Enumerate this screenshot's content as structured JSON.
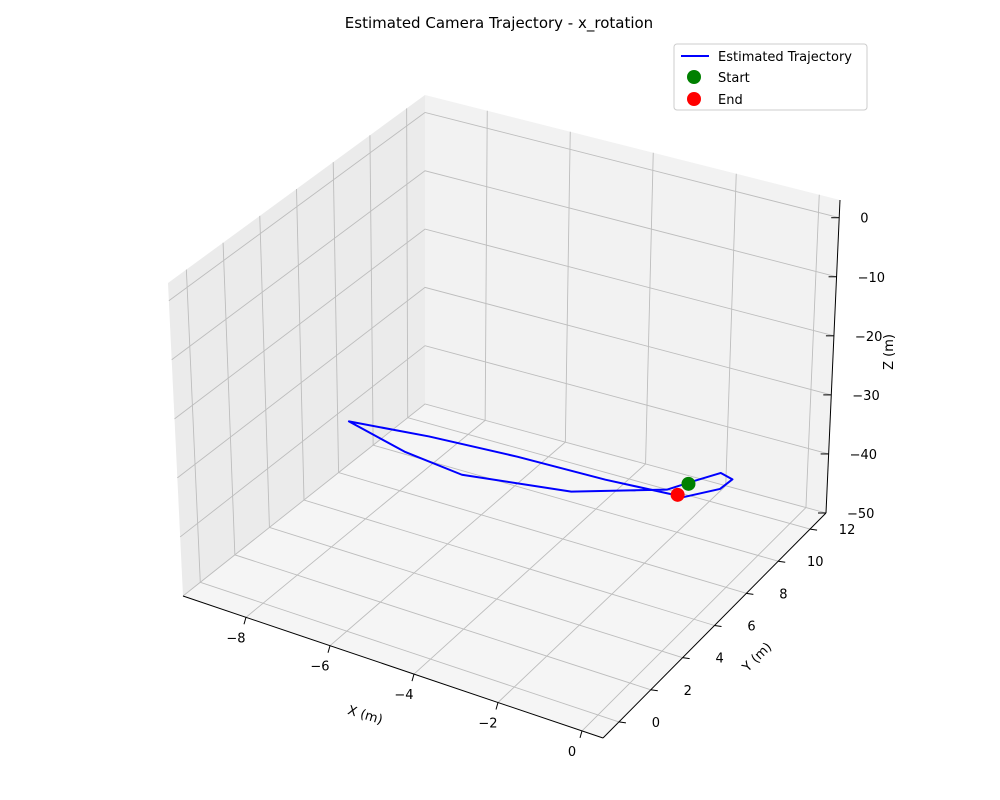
{
  "chart_data": {
    "type": "line",
    "projection": "3d",
    "title": "Estimated Camera Trajectory - x_rotation",
    "xlabel": "X (m)",
    "ylabel": "Y (m)",
    "zlabel": "Z (m)",
    "xlim": [
      -9.5,
      0.5
    ],
    "ylim": [
      -1,
      13
    ],
    "zlim": [
      -50,
      3
    ],
    "xticks": [
      -8,
      -6,
      -4,
      -2,
      0
    ],
    "yticks": [
      0,
      2,
      4,
      6,
      8,
      10,
      12
    ],
    "zticks": [
      0,
      -10,
      -20,
      -30,
      -40,
      -50
    ],
    "xtick_labels": [
      "−8",
      "−6",
      "−4",
      "−2",
      "0"
    ],
    "ytick_labels": [
      "0",
      "2",
      "4",
      "6",
      "8",
      "10",
      "12"
    ],
    "ztick_labels": [
      "0",
      "−10",
      "−20",
      "−30",
      "−40",
      "−50"
    ],
    "grid": true,
    "legend_position": "top-right",
    "colors": {
      "trajectory": "#0000ff",
      "start": "#008000",
      "end": "#ff0000",
      "pane_left": "#ebebeb",
      "pane_back": "#f2f2f2",
      "pane_floor": "#f5f5f5",
      "grid": "#bdbdbd"
    },
    "series": [
      {
        "name": "Estimated Trajectory",
        "kind": "line",
        "points": [
          [
            -0.3,
            6.0,
            -30.5
          ],
          [
            0.4,
            6.5,
            -29.0
          ],
          [
            0.5,
            7.0,
            -28.5
          ],
          [
            0.1,
            7.3,
            -29.0
          ],
          [
            -0.4,
            7.0,
            -30.5
          ],
          [
            -0.8,
            6.3,
            -31.0
          ],
          [
            -2.5,
            4.8,
            -31.0
          ],
          [
            -4.8,
            4.0,
            -31.0
          ],
          [
            -6.3,
            4.3,
            -31.0
          ],
          [
            -7.0,
            4.6,
            -31.0
          ],
          [
            -7.8,
            4.7,
            -30.0
          ],
          [
            -6.0,
            5.0,
            -29.5
          ],
          [
            -4.0,
            5.3,
            -29.5
          ],
          [
            -2.0,
            5.6,
            -30.0
          ],
          [
            -0.5,
            6.0,
            -30.5
          ]
        ]
      },
      {
        "name": "Start",
        "kind": "point",
        "points": [
          [
            -0.4,
            6.6,
            -30.0
          ]
        ]
      },
      {
        "name": "End",
        "kind": "point",
        "points": [
          [
            -0.5,
            6.2,
            -31.0
          ]
        ]
      }
    ]
  }
}
